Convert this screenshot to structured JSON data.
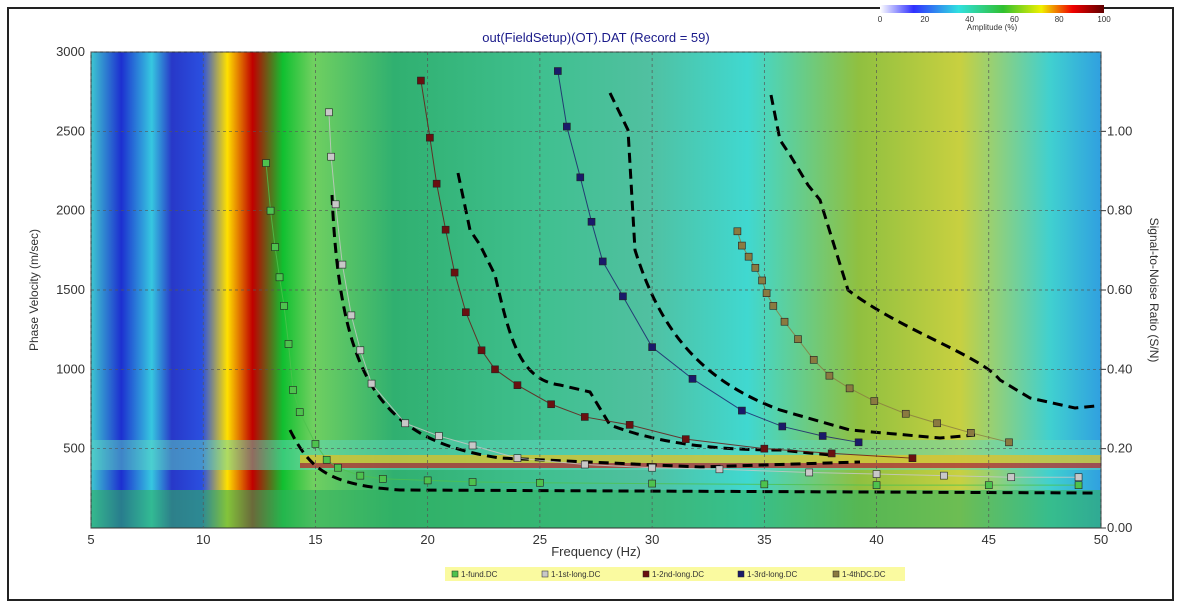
{
  "chart_data": {
    "type": "scatter",
    "title": "out(FieldSetup)(OT).DAT (Record = 59)",
    "x_label": "Frequency (Hz)",
    "y_label": "Phase Velocity (m/sec)",
    "y2_label": "Signal-to-Noise Ratio (S/N)",
    "xlim": [
      5,
      50
    ],
    "xticks": [
      5,
      10,
      15,
      20,
      25,
      30,
      35,
      40,
      45,
      50
    ],
    "ylim": [
      0,
      3000
    ],
    "yticks": [
      500,
      1000,
      1500,
      2000,
      2500,
      3000
    ],
    "y2lim": [
      0,
      1.2
    ],
    "y2ticks": [
      {
        "value": 0,
        "label": "0.00"
      },
      {
        "value": 0.2,
        "label": "0.20"
      },
      {
        "value": 0.4,
        "label": "0.40"
      },
      {
        "value": 0.6,
        "label": "0.60"
      },
      {
        "value": 0.8,
        "label": "0.80"
      },
      {
        "value": 1,
        "label": "1.00"
      }
    ],
    "grid": true,
    "colorbar": {
      "label": "Amplitude (%)",
      "lim": [
        0,
        100
      ],
      "ticks": [
        0,
        20,
        40,
        60,
        80,
        100
      ]
    },
    "series": [
      {
        "name": "1-fund.DC",
        "color": "#4ec24e",
        "x": [
          12.8,
          13.0,
          13.2,
          13.4,
          13.6,
          13.8,
          14.0,
          14.3,
          15.0,
          15.5,
          16,
          17,
          18,
          20,
          22,
          25,
          30,
          35,
          40,
          45,
          49
        ],
        "y": [
          2300,
          2000,
          1770,
          1580,
          1400,
          1160,
          870,
          730,
          530,
          430,
          380,
          330,
          310,
          300,
          290,
          285,
          280,
          275,
          270,
          270,
          270
        ]
      },
      {
        "name": "1-1st-long.DC",
        "color": "#c8c8c8",
        "x": [
          15.6,
          15.7,
          15.9,
          16.2,
          16.6,
          17,
          17.5,
          19,
          20.5,
          22,
          24,
          27,
          30,
          33,
          37,
          40,
          43,
          46,
          49
        ],
        "y": [
          2620,
          2340,
          2040,
          1660,
          1340,
          1120,
          910,
          660,
          580,
          520,
          440,
          400,
          380,
          370,
          350,
          340,
          330,
          320,
          320
        ]
      },
      {
        "name": "1-2nd-long.DC",
        "color": "#6a1010",
        "x": [
          19.7,
          20.1,
          20.4,
          20.8,
          21.2,
          21.7,
          22.4,
          23,
          24,
          25.5,
          27,
          29,
          31.5,
          35,
          38,
          41.6
        ],
        "y": [
          2820,
          2460,
          2170,
          1880,
          1610,
          1360,
          1120,
          1000,
          900,
          780,
          700,
          650,
          560,
          500,
          470,
          440
        ]
      },
      {
        "name": "1-3rd-long.DC",
        "color": "#1a1a6a",
        "x": [
          25.8,
          26.2,
          26.8,
          27.3,
          27.8,
          28.7,
          30,
          31.8,
          34,
          35.8,
          37.6,
          39.2
        ],
        "y": [
          2880,
          2530,
          2210,
          1930,
          1680,
          1460,
          1140,
          940,
          740,
          640,
          580,
          540
        ]
      },
      {
        "name": "1-4thDC.DC",
        "color": "#8a7a40",
        "x": [
          33.8,
          34,
          34.3,
          34.6,
          34.9,
          35.1,
          35.4,
          35.9,
          36.5,
          37.2,
          37.9,
          38.8,
          39.9,
          41.3,
          42.7,
          44.2,
          45.9
        ],
        "y": [
          1870,
          1780,
          1710,
          1640,
          1560,
          1480,
          1400,
          1300,
          1190,
          1060,
          960,
          880,
          800,
          720,
          660,
          600,
          540
        ]
      }
    ]
  }
}
